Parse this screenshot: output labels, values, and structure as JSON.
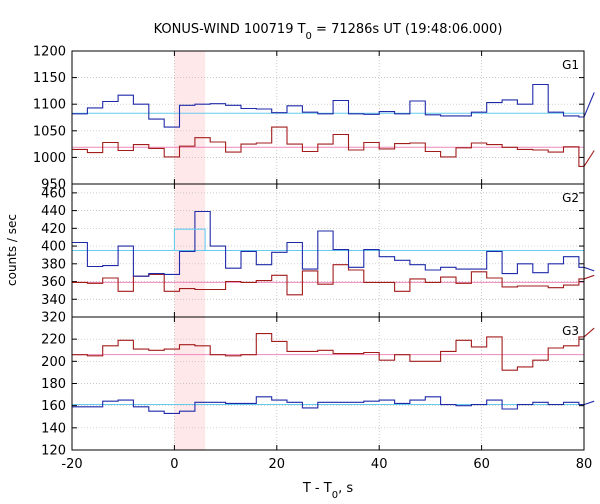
{
  "chart_data": {
    "type": "line",
    "title": "KONUS-WIND 100719 T",
    "title_sub": "0",
    "title_rest": " = 71286s UT (19:48:06.000)",
    "xlabel_main": "T - T",
    "xlabel_sub": "0",
    "xlabel_rest": ", s",
    "ylabel": "counts / sec",
    "xlim": [
      -20,
      80
    ],
    "xticks": [
      -20,
      0,
      20,
      40,
      60,
      80
    ],
    "grid": true,
    "highlight_interval": [
      0,
      6
    ],
    "colors": {
      "blue": "#1f2aa8",
      "red": "#a31c1c",
      "blue_bg": "#66ccee",
      "red_bg": "#ee88bb",
      "highlight": "#ffe8ea"
    },
    "panels": [
      {
        "label": "G1",
        "ylim": [
          950,
          1200
        ],
        "yticks": [
          950,
          1000,
          1050,
          1100,
          1150,
          1200
        ],
        "show_bottom_tick": true,
        "background_blue": 1083,
        "background_red": 1019,
        "step_x": [
          -20,
          -17,
          -14,
          -11,
          -8,
          -5,
          -2,
          1,
          4,
          7,
          10,
          13,
          16,
          19,
          22,
          25,
          28,
          31,
          34,
          37,
          40,
          43,
          46,
          49,
          52,
          55,
          58,
          61,
          64,
          67,
          70,
          73,
          76,
          79,
          82
        ],
        "blue": [
          1082,
          1093,
          1105,
          1117,
          1100,
          1072,
          1057,
          1098,
          1100,
          1101,
          1098,
          1092,
          1091,
          1084,
          1097,
          1085,
          1082,
          1107,
          1082,
          1081,
          1086,
          1082,
          1106,
          1080,
          1078,
          1078,
          1085,
          1103,
          1108,
          1100,
          1137,
          1085,
          1078,
          1076,
          1122
        ],
        "red": [
          1015,
          1009,
          1028,
          1013,
          1024,
          1017,
          1001,
          1021,
          1037,
          1029,
          1010,
          1025,
          1027,
          1057,
          1025,
          1011,
          1025,
          1043,
          1014,
          1028,
          1016,
          1026,
          1027,
          1011,
          1001,
          1018,
          1027,
          1024,
          1019,
          1015,
          1014,
          1010,
          1020,
          983,
          1013
        ]
      },
      {
        "label": "G2",
        "ylim": [
          320,
          470
        ],
        "yticks": [
          320,
          340,
          360,
          380,
          400,
          420,
          440,
          460
        ],
        "show_bottom_tick": true,
        "background_blue": 395,
        "background_red": 359,
        "blue_highlight": 419,
        "step_x": [
          -20,
          -17,
          -14,
          -11,
          -8,
          -5,
          -2,
          1,
          4,
          7,
          10,
          13,
          16,
          19,
          22,
          25,
          28,
          31,
          34,
          37,
          40,
          43,
          46,
          49,
          52,
          55,
          58,
          61,
          64,
          67,
          70,
          73,
          76,
          79,
          82
        ],
        "blue": [
          404,
          377,
          378,
          400,
          366,
          369,
          368,
          394,
          439,
          400,
          375,
          394,
          379,
          393,
          404,
          374,
          417,
          396,
          376,
          396,
          388,
          384,
          379,
          373,
          376,
          374,
          374,
          394,
          369,
          380,
          370,
          380,
          388,
          376,
          372
        ],
        "red": [
          359,
          358,
          364,
          349,
          366,
          368,
          349,
          352,
          351,
          351,
          360,
          359,
          361,
          367,
          345,
          372,
          357,
          379,
          373,
          359,
          359,
          349,
          363,
          359,
          365,
          358,
          371,
          364,
          354,
          355,
          355,
          353,
          356,
          363,
          367
        ]
      },
      {
        "label": "G3",
        "ylim": [
          120,
          240
        ],
        "yticks": [
          120,
          140,
          160,
          180,
          200,
          220
        ],
        "show_bottom_tick": true,
        "background_blue": 161,
        "background_red": 206,
        "step_x": [
          -20,
          -17,
          -14,
          -11,
          -8,
          -5,
          -2,
          1,
          4,
          7,
          10,
          13,
          16,
          19,
          22,
          25,
          28,
          31,
          34,
          37,
          40,
          43,
          46,
          49,
          52,
          55,
          58,
          61,
          64,
          67,
          70,
          73,
          76,
          79,
          82
        ],
        "blue": [
          159,
          159,
          164,
          165,
          159,
          155,
          153,
          155,
          163,
          163,
          162,
          162,
          168,
          165,
          163,
          158,
          163,
          163,
          163,
          164,
          165,
          162,
          165,
          168,
          161,
          160,
          161,
          165,
          157,
          161,
          163,
          161,
          163,
          161,
          164
        ],
        "red": [
          206,
          205,
          214,
          219,
          211,
          210,
          211,
          215,
          214,
          206,
          205,
          206,
          225,
          218,
          209,
          209,
          210,
          207,
          207,
          208,
          201,
          206,
          200,
          200,
          209,
          219,
          213,
          222,
          192,
          195,
          201,
          212,
          214,
          222,
          230
        ]
      }
    ]
  }
}
